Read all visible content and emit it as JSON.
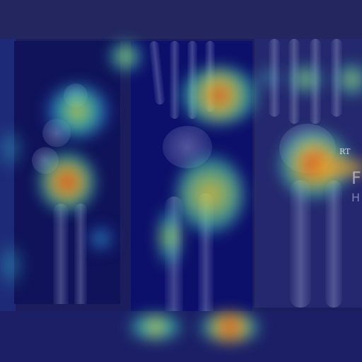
{
  "image": {
    "type": "radiograph-with-heatmap-overlay",
    "colormap": "jet",
    "markers": {
      "side_label": "RT",
      "partial_letter_1": "F",
      "partial_letter_2": "H"
    },
    "colors": {
      "background": "#1b1d5e",
      "heat_low": "#1a1fa8",
      "heat_mid": "#33d6c0",
      "heat_high": "#f2e23a",
      "heat_peak": "#d8241a"
    }
  }
}
